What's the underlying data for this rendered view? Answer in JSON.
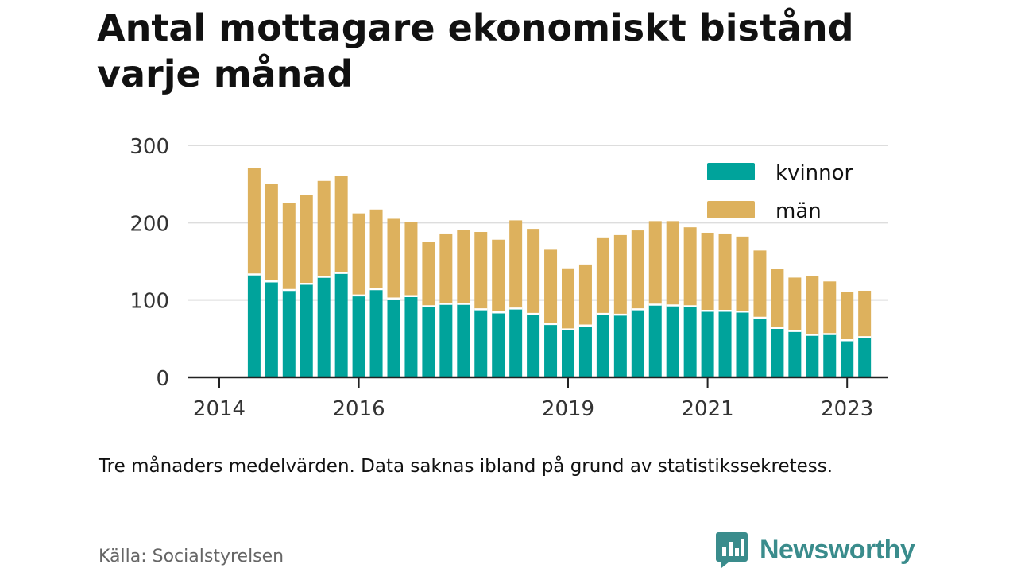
{
  "header": {
    "title_line1": "Antal mottagare ekonomiskt bistånd",
    "title_line2": "varje månad"
  },
  "footer": {
    "caption": "Tre månaders medelvärden. Data saknas ibland på grund av statistikssekretess.",
    "source": "Källa: Socialstyrelsen",
    "brand": "Newsworthy"
  },
  "colors": {
    "kvinnor": "#00a39b",
    "man": "#ddb15d",
    "grid": "#dddddd",
    "axis": "#222222"
  },
  "chart_data": {
    "type": "bar",
    "stacked": true,
    "title": "Antal mottagare ekonomiskt bistånd varje månad",
    "xlabel": "",
    "ylabel": "",
    "ylim": [
      0,
      300
    ],
    "yticks": [
      0,
      100,
      200,
      300
    ],
    "xlim": [
      2014.0,
      2023.5
    ],
    "xticks": [
      2014,
      2016,
      2019,
      2021,
      2023
    ],
    "grid": true,
    "legend_position": "top-right",
    "x": [
      2014.5,
      2014.75,
      2015.0,
      2015.25,
      2015.5,
      2015.75,
      2016.0,
      2016.25,
      2016.5,
      2016.75,
      2017.0,
      2017.25,
      2017.5,
      2017.75,
      2018.0,
      2018.25,
      2018.5,
      2018.75,
      2019.0,
      2019.25,
      2019.5,
      2019.75,
      2020.0,
      2020.25,
      2020.5,
      2020.75,
      2021.0,
      2021.25,
      2021.5,
      2021.75,
      2022.0,
      2022.25,
      2022.5,
      2022.75,
      2023.0,
      2023.25
    ],
    "series": [
      {
        "name": "kvinnor",
        "values": [
          133,
          124,
          113,
          121,
          130,
          135,
          106,
          114,
          102,
          105,
          92,
          95,
          95,
          88,
          84,
          89,
          82,
          69,
          62,
          67,
          82,
          81,
          88,
          94,
          93,
          92,
          86,
          86,
          85,
          77,
          64,
          60,
          55,
          56,
          48,
          52
        ]
      },
      {
        "name": "män",
        "values": [
          138,
          126,
          113,
          115,
          124,
          125,
          106,
          103,
          103,
          96,
          83,
          91,
          96,
          100,
          94,
          114,
          110,
          96,
          79,
          79,
          99,
          103,
          102,
          108,
          109,
          102,
          101,
          100,
          97,
          87,
          76,
          69,
          76,
          68,
          62,
          60
        ]
      }
    ]
  }
}
